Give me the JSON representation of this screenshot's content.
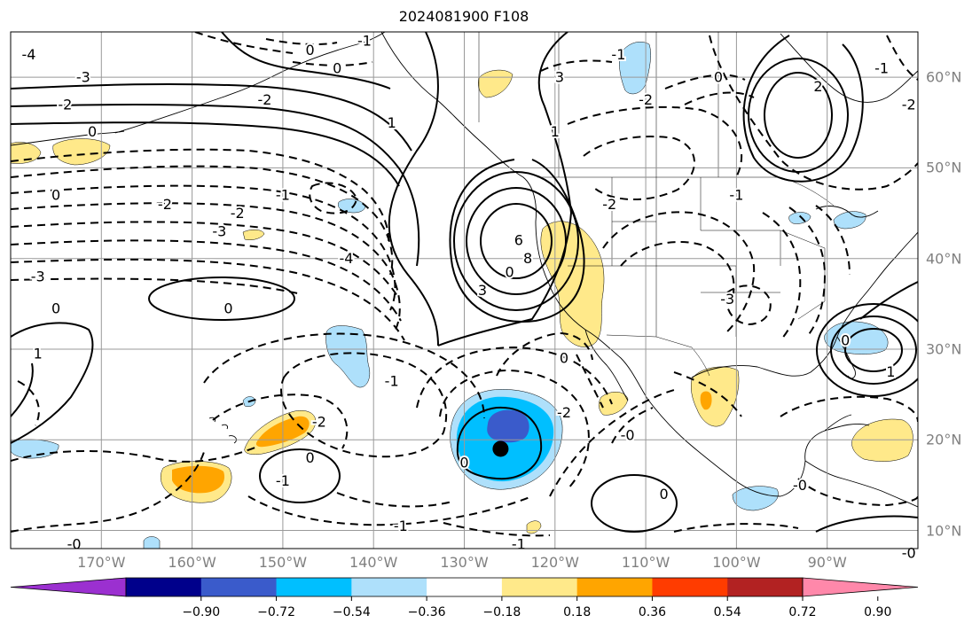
{
  "figure": {
    "title": "2024081900 F108"
  },
  "map": {
    "projection": "equirectangular",
    "extent": {
      "lon_min": -180,
      "lon_max": -80,
      "lat_min": 8,
      "lat_max": 65
    },
    "gridlines": true,
    "gridline_color": "#999999",
    "land_outline_color": "#000000",
    "lon_ticks": [
      {
        "value": -170,
        "label": "170°W"
      },
      {
        "value": -160,
        "label": "160°W"
      },
      {
        "value": -150,
        "label": "150°W"
      },
      {
        "value": -140,
        "label": "140°W"
      },
      {
        "value": -130,
        "label": "130°W"
      },
      {
        "value": -120,
        "label": "120°W"
      },
      {
        "value": -110,
        "label": "110°W"
      },
      {
        "value": -100,
        "label": "100°W"
      },
      {
        "value": -90,
        "label": "90°W"
      }
    ],
    "lat_ticks": [
      {
        "value": 60,
        "label": "60°N"
      },
      {
        "value": 50,
        "label": "50°N"
      },
      {
        "value": 40,
        "label": "40°N"
      },
      {
        "value": 30,
        "label": "30°N"
      },
      {
        "value": 20,
        "label": "20°N"
      },
      {
        "value": 10,
        "label": "10°N"
      }
    ],
    "storm_marker": {
      "lon": -126,
      "lat": 19,
      "color": "#000000"
    },
    "contour_labels": [
      {
        "text": "-3",
        "lon": -172,
        "lat": 60
      },
      {
        "text": "-2",
        "lon": -174,
        "lat": 57
      },
      {
        "text": "0",
        "lon": -171,
        "lat": 54
      },
      {
        "text": "-4",
        "lon": -178,
        "lat": 62.5
      },
      {
        "text": "-1",
        "lon": -150,
        "lat": 47
      },
      {
        "text": "-2",
        "lon": -155,
        "lat": 45
      },
      {
        "text": "-3",
        "lon": -157,
        "lat": 43
      },
      {
        "text": "-2",
        "lon": -163,
        "lat": 46
      },
      {
        "text": "-3",
        "lon": -177,
        "lat": 38
      },
      {
        "text": "-4",
        "lon": -143,
        "lat": 40
      },
      {
        "text": "0",
        "lon": -175,
        "lat": 47
      },
      {
        "text": "0",
        "lon": -156,
        "lat": 34.5
      },
      {
        "text": "0",
        "lon": -175,
        "lat": 34.5
      },
      {
        "text": "1",
        "lon": -177,
        "lat": 29.5
      },
      {
        "text": "-1",
        "lon": -138,
        "lat": 26.5
      },
      {
        "text": "-2",
        "lon": -146,
        "lat": 22
      },
      {
        "text": "0",
        "lon": -147,
        "lat": 18
      },
      {
        "text": "-1",
        "lon": -150,
        "lat": 15.5
      },
      {
        "text": "-0",
        "lon": -173,
        "lat": 8.5
      },
      {
        "text": "0",
        "lon": -130,
        "lat": 17.5
      },
      {
        "text": "-1",
        "lon": -137,
        "lat": 10.5
      },
      {
        "text": "-1",
        "lon": -124,
        "lat": 8.5
      },
      {
        "text": "-2",
        "lon": -119,
        "lat": 23
      },
      {
        "text": "0",
        "lon": -119,
        "lat": 29
      },
      {
        "text": "-0",
        "lon": -112,
        "lat": 20.5
      },
      {
        "text": "0",
        "lon": -108,
        "lat": 14
      },
      {
        "text": "-0",
        "lon": -93,
        "lat": 15
      },
      {
        "text": "-0",
        "lon": -81,
        "lat": 7.5
      },
      {
        "text": "6",
        "lon": -124,
        "lat": 42
      },
      {
        "text": "8",
        "lon": -123,
        "lat": 40
      },
      {
        "text": "0",
        "lon": -125,
        "lat": 38.5
      },
      {
        "text": "3",
        "lon": -128,
        "lat": 36.5
      },
      {
        "text": "3",
        "lon": -119.5,
        "lat": 60
      },
      {
        "text": "1",
        "lon": -120,
        "lat": 54
      },
      {
        "text": "-2",
        "lon": -114,
        "lat": 46
      },
      {
        "text": "-2",
        "lon": -110,
        "lat": 57.5
      },
      {
        "text": "0",
        "lon": -102,
        "lat": 60
      },
      {
        "text": "-1",
        "lon": -100,
        "lat": 47
      },
      {
        "text": "2",
        "lon": -91,
        "lat": 59
      },
      {
        "text": "-1",
        "lon": -84,
        "lat": 61
      },
      {
        "text": "-2",
        "lon": -81,
        "lat": 57
      },
      {
        "text": "-3",
        "lon": -101,
        "lat": 35.5
      },
      {
        "text": "0",
        "lon": -88,
        "lat": 31
      },
      {
        "text": "1",
        "lon": -83,
        "lat": 27.5
      },
      {
        "text": "-1",
        "lon": -113,
        "lat": 62.5
      },
      {
        "text": "0",
        "lon": -147,
        "lat": 63
      },
      {
        "text": "-1",
        "lon": -141,
        "lat": 64
      },
      {
        "text": "0",
        "lon": -144,
        "lat": 61
      },
      {
        "text": "-2",
        "lon": -152,
        "lat": 57.5
      },
      {
        "text": "1",
        "lon": -138,
        "lat": 55
      }
    ]
  },
  "colorbar": {
    "extend": "both",
    "bins": [
      "#9b30d0",
      "#00008b",
      "#3a5bcb",
      "#00bfff",
      "#aee0fb",
      "#ffffff",
      "#ffe98a",
      "#ffa500",
      "#ff3c00",
      "#b22222",
      "#ff88aa"
    ],
    "tick_labels": [
      "−0.90",
      "−0.72",
      "−0.54",
      "−0.36",
      "−0.18",
      "0.18",
      "0.36",
      "0.54",
      "0.72",
      "0.90"
    ]
  }
}
